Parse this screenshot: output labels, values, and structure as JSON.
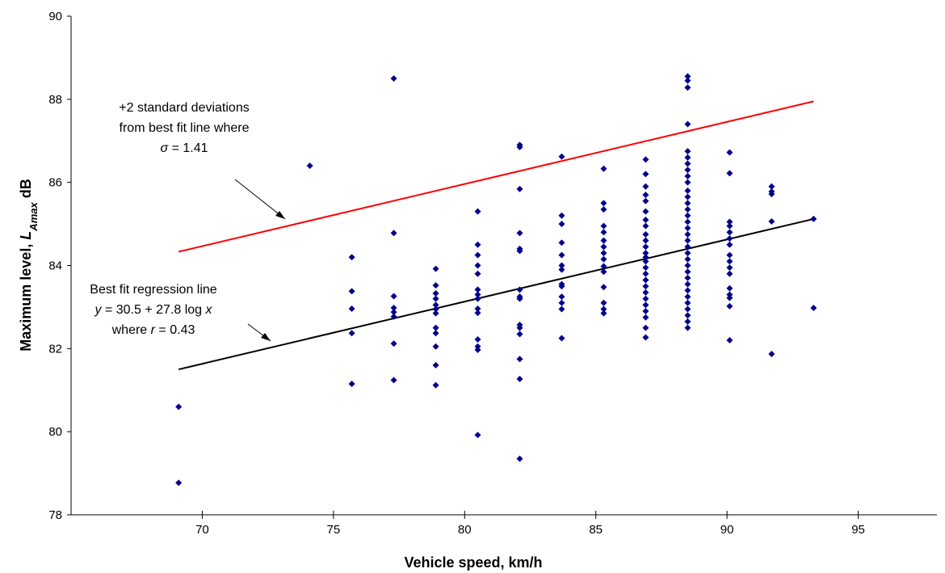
{
  "chart_data": {
    "type": "scatter",
    "xlabel": "Vehicle speed, km/h",
    "ylabel_main": "Maximum  level, ",
    "ylabel_var": "L",
    "ylabel_sub": "Amax",
    "ylabel_unit": " dB",
    "xlim": [
      65,
      98
    ],
    "ylim": [
      78,
      90
    ],
    "x_ticks": [
      "70",
      "75",
      "80",
      "85",
      "90",
      "95"
    ],
    "y_ticks": [
      "78",
      "80",
      "82",
      "84",
      "86",
      "88",
      "90"
    ],
    "grid": false,
    "legend": "none",
    "colors": {
      "points": "#00008b",
      "fit_line": "#000000",
      "upper_line": "#ff0000"
    },
    "lines": [
      {
        "role": "best_fit",
        "x": [
          69.1,
          93.3
        ],
        "y": [
          81.5,
          85.12
        ]
      },
      {
        "role": "plus_2_sigma",
        "x": [
          69.1,
          93.3
        ],
        "y": [
          84.33,
          87.95
        ]
      }
    ],
    "points": [
      [
        69.1,
        80.6
      ],
      [
        69.1,
        78.77
      ],
      [
        74.1,
        86.4
      ],
      [
        75.7,
        84.2
      ],
      [
        75.7,
        83.38
      ],
      [
        75.7,
        82.96
      ],
      [
        75.7,
        82.37
      ],
      [
        75.7,
        81.15
      ],
      [
        77.3,
        88.5
      ],
      [
        77.3,
        84.78
      ],
      [
        77.3,
        83.26
      ],
      [
        77.3,
        82.98
      ],
      [
        77.3,
        82.88
      ],
      [
        77.3,
        82.77
      ],
      [
        77.3,
        82.12
      ],
      [
        77.3,
        81.24
      ],
      [
        78.9,
        83.92
      ],
      [
        78.9,
        83.52
      ],
      [
        78.9,
        83.33
      ],
      [
        78.9,
        83.2
      ],
      [
        78.9,
        83.05
      ],
      [
        78.9,
        82.95
      ],
      [
        78.9,
        82.85
      ],
      [
        78.9,
        82.5
      ],
      [
        78.9,
        82.37
      ],
      [
        78.9,
        82.05
      ],
      [
        78.9,
        81.6
      ],
      [
        78.9,
        81.12
      ],
      [
        80.5,
        85.3
      ],
      [
        80.5,
        84.5
      ],
      [
        80.5,
        84.25
      ],
      [
        80.5,
        84.0
      ],
      [
        80.5,
        83.8
      ],
      [
        80.5,
        83.42
      ],
      [
        80.5,
        83.3
      ],
      [
        80.5,
        83.2
      ],
      [
        80.5,
        82.96
      ],
      [
        80.5,
        82.86
      ],
      [
        80.5,
        82.22
      ],
      [
        80.5,
        82.05
      ],
      [
        80.5,
        81.97
      ],
      [
        80.5,
        79.92
      ],
      [
        82.1,
        86.9
      ],
      [
        82.1,
        86.85
      ],
      [
        82.1,
        85.84
      ],
      [
        82.1,
        84.78
      ],
      [
        82.1,
        84.4
      ],
      [
        82.1,
        84.35
      ],
      [
        82.1,
        83.42
      ],
      [
        82.1,
        83.25
      ],
      [
        82.1,
        83.2
      ],
      [
        82.1,
        82.57
      ],
      [
        82.1,
        82.5
      ],
      [
        82.1,
        82.35
      ],
      [
        82.1,
        81.75
      ],
      [
        82.1,
        81.27
      ],
      [
        82.1,
        79.35
      ],
      [
        83.7,
        86.62
      ],
      [
        83.7,
        85.2
      ],
      [
        83.7,
        85.0
      ],
      [
        83.7,
        84.55
      ],
      [
        83.7,
        84.25
      ],
      [
        83.7,
        84.0
      ],
      [
        83.7,
        83.9
      ],
      [
        83.7,
        83.55
      ],
      [
        83.7,
        83.5
      ],
      [
        83.7,
        83.25
      ],
      [
        83.7,
        83.1
      ],
      [
        83.7,
        82.95
      ],
      [
        83.7,
        82.25
      ],
      [
        85.3,
        86.33
      ],
      [
        85.3,
        85.5
      ],
      [
        85.3,
        85.35
      ],
      [
        85.3,
        84.95
      ],
      [
        85.3,
        84.8
      ],
      [
        85.3,
        84.6
      ],
      [
        85.3,
        84.45
      ],
      [
        85.3,
        84.3
      ],
      [
        85.3,
        84.15
      ],
      [
        85.3,
        83.98
      ],
      [
        85.3,
        83.85
      ],
      [
        85.3,
        83.48
      ],
      [
        85.3,
        83.1
      ],
      [
        85.3,
        82.95
      ],
      [
        85.3,
        82.85
      ],
      [
        86.9,
        86.55
      ],
      [
        86.9,
        86.2
      ],
      [
        86.9,
        85.9
      ],
      [
        86.9,
        85.7
      ],
      [
        86.9,
        85.55
      ],
      [
        86.9,
        85.3
      ],
      [
        86.9,
        85.1
      ],
      [
        86.9,
        84.95
      ],
      [
        86.9,
        84.75
      ],
      [
        86.9,
        84.6
      ],
      [
        86.9,
        84.45
      ],
      [
        86.9,
        84.3
      ],
      [
        86.9,
        84.2
      ],
      [
        86.9,
        84.1
      ],
      [
        86.9,
        83.95
      ],
      [
        86.9,
        83.8
      ],
      [
        86.9,
        83.65
      ],
      [
        86.9,
        83.5
      ],
      [
        86.9,
        83.35
      ],
      [
        86.9,
        83.2
      ],
      [
        86.9,
        83.05
      ],
      [
        86.9,
        82.9
      ],
      [
        86.9,
        82.75
      ],
      [
        86.9,
        82.5
      ],
      [
        86.9,
        82.27
      ],
      [
        88.5,
        88.55
      ],
      [
        88.5,
        88.45
      ],
      [
        88.5,
        88.28
      ],
      [
        88.5,
        87.4
      ],
      [
        88.5,
        86.75
      ],
      [
        88.5,
        86.6
      ],
      [
        88.5,
        86.45
      ],
      [
        88.5,
        86.3
      ],
      [
        88.5,
        86.15
      ],
      [
        88.5,
        86.0
      ],
      [
        88.5,
        85.8
      ],
      [
        88.5,
        85.65
      ],
      [
        88.5,
        85.5
      ],
      [
        88.5,
        85.35
      ],
      [
        88.5,
        85.2
      ],
      [
        88.5,
        85.05
      ],
      [
        88.5,
        84.9
      ],
      [
        88.5,
        84.75
      ],
      [
        88.5,
        84.6
      ],
      [
        88.5,
        84.45
      ],
      [
        88.5,
        84.3
      ],
      [
        88.5,
        84.15
      ],
      [
        88.5,
        84.0
      ],
      [
        88.5,
        83.85
      ],
      [
        88.5,
        83.7
      ],
      [
        88.5,
        83.55
      ],
      [
        88.5,
        83.4
      ],
      [
        88.5,
        83.25
      ],
      [
        88.5,
        83.1
      ],
      [
        88.5,
        82.95
      ],
      [
        88.5,
        82.8
      ],
      [
        88.5,
        82.65
      ],
      [
        88.5,
        82.5
      ],
      [
        90.1,
        86.72
      ],
      [
        90.1,
        86.22
      ],
      [
        90.1,
        85.05
      ],
      [
        90.1,
        84.95
      ],
      [
        90.1,
        84.8
      ],
      [
        90.1,
        84.65
      ],
      [
        90.1,
        84.5
      ],
      [
        90.1,
        84.25
      ],
      [
        90.1,
        84.1
      ],
      [
        90.1,
        83.95
      ],
      [
        90.1,
        83.8
      ],
      [
        90.1,
        83.45
      ],
      [
        90.1,
        83.3
      ],
      [
        90.1,
        83.22
      ],
      [
        90.1,
        83.02
      ],
      [
        90.1,
        82.2
      ],
      [
        91.7,
        85.9
      ],
      [
        91.7,
        85.78
      ],
      [
        91.7,
        85.72
      ],
      [
        91.7,
        85.06
      ],
      [
        91.7,
        81.87
      ],
      [
        93.3,
        85.12
      ],
      [
        93.3,
        82.98
      ]
    ],
    "annotations": {
      "upper": {
        "line1": "+2 standard deviations",
        "line2": "from best fit line where",
        "line3_var": "σ",
        "line3_rest": " = 1.41"
      },
      "fit": {
        "line1": "Best fit regression line",
        "line2_y": "y",
        "line2_mid": " = 30.5 + 27.8 log ",
        "line2_x": "x",
        "line3_pre": "where ",
        "line3_var": "r",
        "line3_rest": " = 0.43"
      }
    }
  }
}
